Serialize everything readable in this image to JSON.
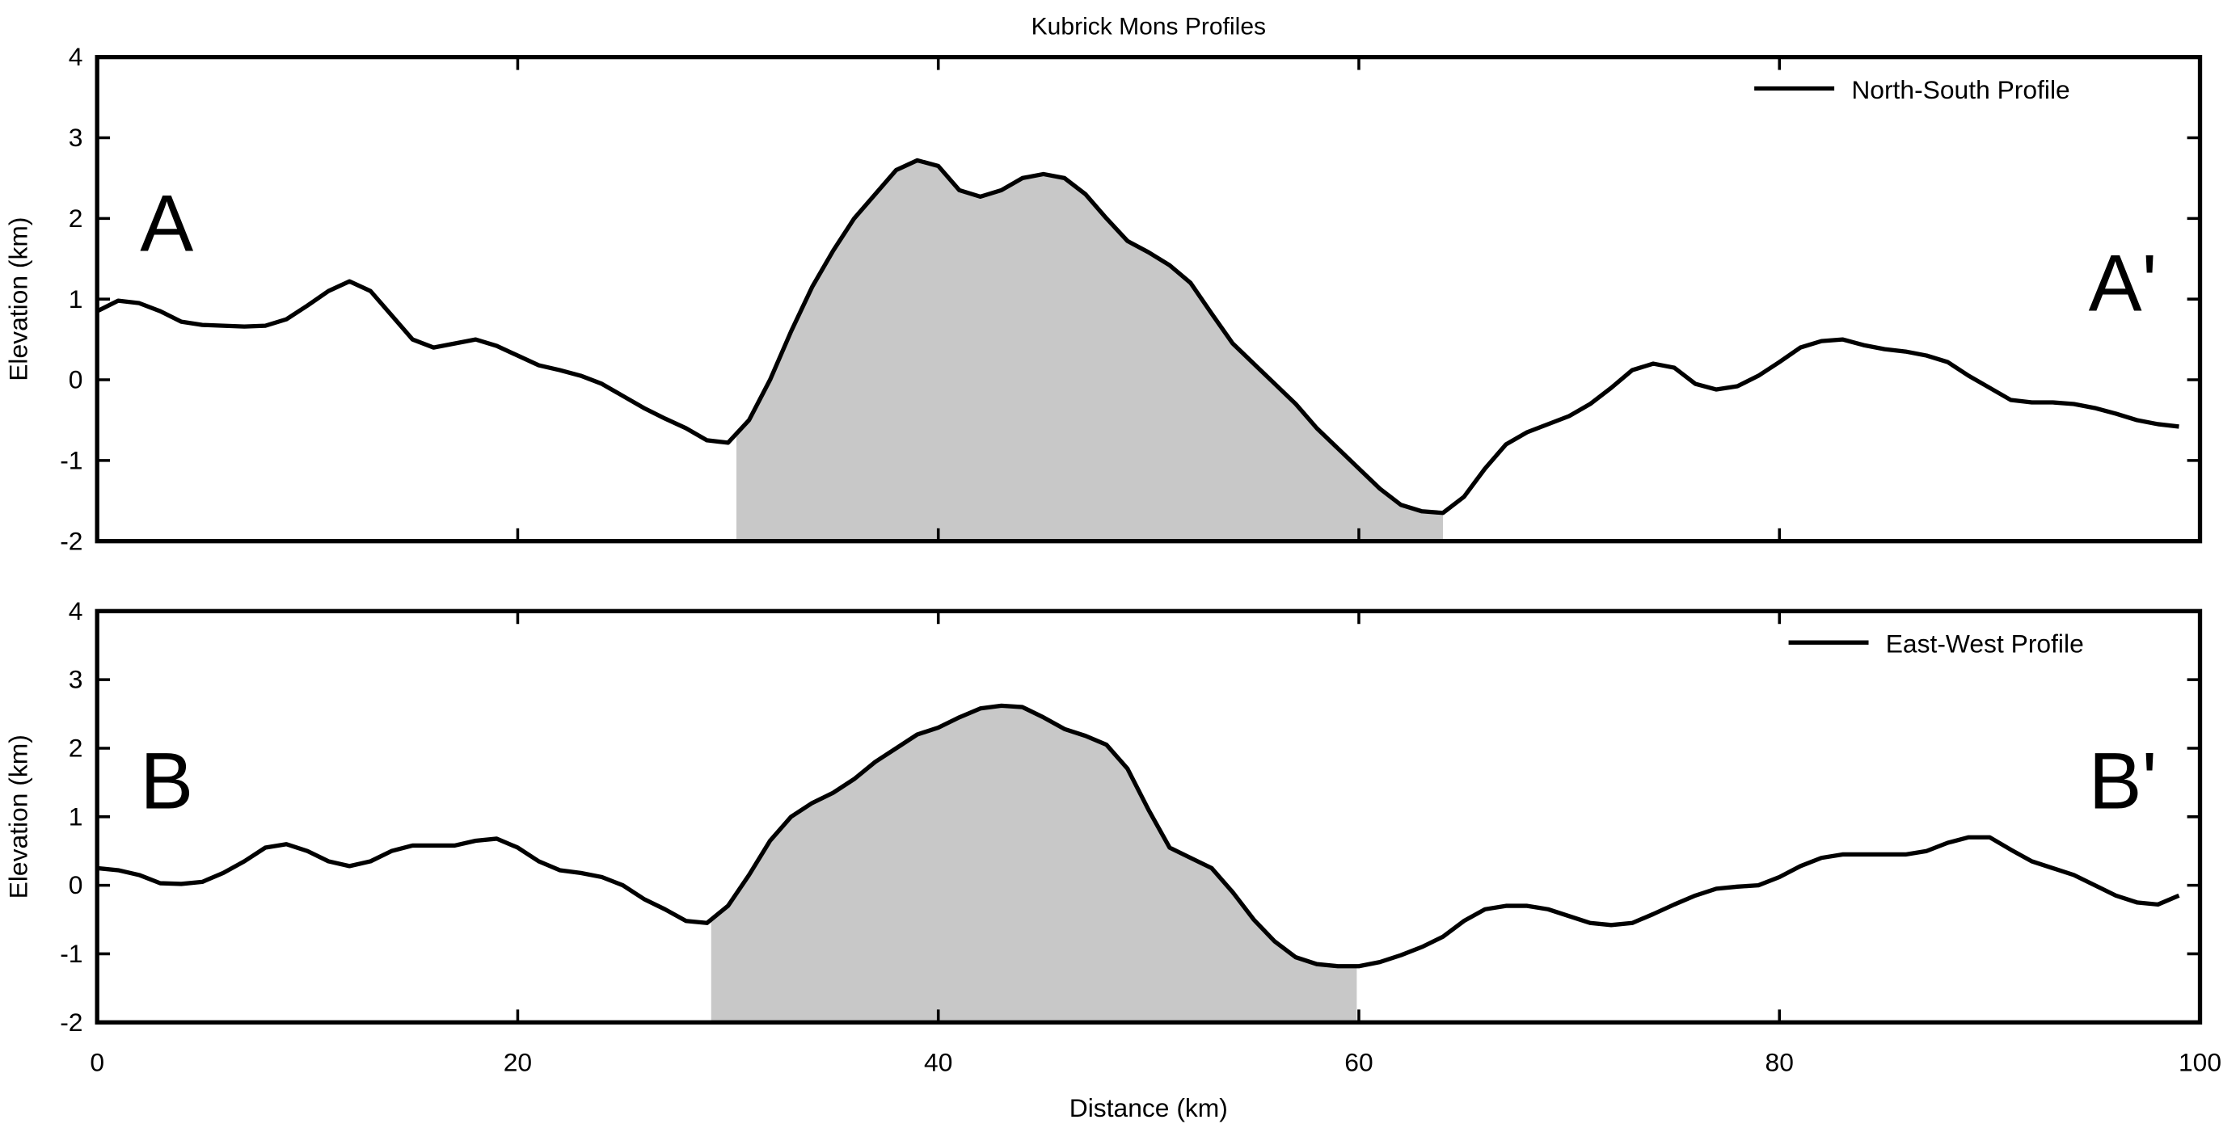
{
  "chart_data": [
    {
      "type": "line",
      "title": "Kubrick Mons Profiles",
      "y_label": "Elevation (km)",
      "x": [
        0,
        1,
        2,
        3,
        4,
        5,
        6,
        7,
        8,
        9,
        10,
        11,
        12,
        13,
        14,
        15,
        16,
        17,
        18,
        19,
        20,
        21,
        22,
        23,
        24,
        25,
        26,
        27,
        28,
        29,
        30,
        31,
        32,
        33,
        34,
        35,
        36,
        37,
        38,
        39,
        40,
        41,
        42,
        43,
        44,
        45,
        46,
        47,
        48,
        49,
        50,
        51,
        52,
        53,
        54,
        55,
        56,
        57,
        58,
        59,
        60,
        61,
        62,
        63,
        64,
        65,
        66,
        67,
        68,
        69,
        70,
        71,
        72,
        73,
        74,
        75,
        76,
        77,
        78,
        79,
        80,
        81,
        82,
        83,
        84,
        85,
        86,
        87,
        88,
        89,
        90,
        91,
        92,
        93,
        94,
        95,
        96,
        97,
        98,
        99
      ],
      "series": [
        {
          "name": "North-South Profile",
          "color": "#000000",
          "values": [
            0.85,
            0.98,
            0.95,
            0.85,
            0.72,
            0.68,
            0.67,
            0.66,
            0.67,
            0.75,
            0.92,
            1.1,
            1.22,
            1.1,
            0.8,
            0.5,
            0.4,
            0.45,
            0.5,
            0.42,
            0.3,
            0.18,
            0.12,
            0.05,
            -0.05,
            -0.2,
            -0.35,
            -0.48,
            -0.6,
            -0.75,
            -0.78,
            -0.5,
            0.0,
            0.6,
            1.15,
            1.6,
            2.0,
            2.3,
            2.6,
            2.72,
            2.65,
            2.35,
            2.27,
            2.35,
            2.5,
            2.55,
            2.5,
            2.3,
            2.0,
            1.72,
            1.58,
            1.42,
            1.2,
            0.82,
            0.45,
            0.2,
            -0.05,
            -0.3,
            -0.6,
            -0.85,
            -1.1,
            -1.35,
            -1.55,
            -1.63,
            -1.65,
            -1.45,
            -1.1,
            -0.8,
            -0.65,
            -0.55,
            -0.45,
            -0.3,
            -0.1,
            0.12,
            0.2,
            0.15,
            -0.05,
            -0.12,
            -0.08,
            0.05,
            0.22,
            0.4,
            0.48,
            0.5,
            0.43,
            0.38,
            0.35,
            0.3,
            0.22,
            0.05,
            -0.1,
            -0.25,
            -0.28,
            -0.28,
            -0.3,
            -0.35,
            -0.42,
            -0.5,
            -0.55,
            -0.58
          ]
        }
      ],
      "shade_range": [
        30.4,
        64.0
      ],
      "shade_color": "#c8c8c8",
      "annotations": [
        "A",
        "A'"
      ],
      "xlim": [
        0,
        100
      ],
      "xticks": [
        0,
        20,
        40,
        60,
        80,
        100
      ],
      "xtick_labels": false,
      "ylim": [
        -2,
        4
      ],
      "yticks": [
        -2,
        -1,
        0,
        1,
        2,
        3,
        4
      ],
      "legend": "upper right"
    },
    {
      "type": "line",
      "x_label": "Distance (km)",
      "y_label": "Elevation (km)",
      "x": [
        0,
        1,
        2,
        3,
        4,
        5,
        6,
        7,
        8,
        9,
        10,
        11,
        12,
        13,
        14,
        15,
        16,
        17,
        18,
        19,
        20,
        21,
        22,
        23,
        24,
        25,
        26,
        27,
        28,
        29,
        30,
        31,
        32,
        33,
        34,
        35,
        36,
        37,
        38,
        39,
        40,
        41,
        42,
        43,
        44,
        45,
        46,
        47,
        48,
        49,
        50,
        51,
        52,
        53,
        54,
        55,
        56,
        57,
        58,
        59,
        60,
        61,
        62,
        63,
        64,
        65,
        66,
        67,
        68,
        69,
        70,
        71,
        72,
        73,
        74,
        75,
        76,
        77,
        78,
        79,
        80,
        81,
        82,
        83,
        84,
        85,
        86,
        87,
        88,
        89,
        90,
        91,
        92,
        93,
        94,
        95,
        96,
        97,
        98,
        99
      ],
      "series": [
        {
          "name": "East-West Profile",
          "color": "#000000",
          "values": [
            0.25,
            0.22,
            0.15,
            0.03,
            0.02,
            0.05,
            0.18,
            0.35,
            0.55,
            0.6,
            0.5,
            0.35,
            0.28,
            0.35,
            0.5,
            0.58,
            0.58,
            0.58,
            0.65,
            0.68,
            0.55,
            0.35,
            0.22,
            0.18,
            0.12,
            0.0,
            -0.2,
            -0.35,
            -0.52,
            -0.55,
            -0.3,
            0.15,
            0.65,
            1.0,
            1.2,
            1.35,
            1.55,
            1.8,
            2.0,
            2.2,
            2.3,
            2.45,
            2.58,
            2.62,
            2.6,
            2.45,
            2.28,
            2.18,
            2.05,
            1.7,
            1.1,
            0.55,
            0.4,
            0.25,
            -0.1,
            -0.5,
            -0.82,
            -1.05,
            -1.15,
            -1.18,
            -1.18,
            -1.12,
            -1.02,
            -0.9,
            -0.75,
            -0.52,
            -0.35,
            -0.3,
            -0.3,
            -0.35,
            -0.45,
            -0.55,
            -0.58,
            -0.55,
            -0.42,
            -0.28,
            -0.15,
            -0.05,
            -0.02,
            0.0,
            0.12,
            0.28,
            0.4,
            0.45,
            0.45,
            0.45,
            0.45,
            0.5,
            0.62,
            0.7,
            0.7,
            0.52,
            0.35,
            0.25,
            0.15,
            0.0,
            -0.15,
            -0.25,
            -0.28,
            -0.15
          ]
        }
      ],
      "shade_range": [
        29.2,
        59.9
      ],
      "shade_color": "#c8c8c8",
      "annotations": [
        "B",
        "B'"
      ],
      "xlim": [
        0,
        100
      ],
      "xticks": [
        0,
        20,
        40,
        60,
        80,
        100
      ],
      "xtick_labels": true,
      "ylim": [
        -2,
        4
      ],
      "yticks": [
        -2,
        -1,
        0,
        1,
        2,
        3,
        4
      ],
      "legend": "upper right"
    }
  ]
}
